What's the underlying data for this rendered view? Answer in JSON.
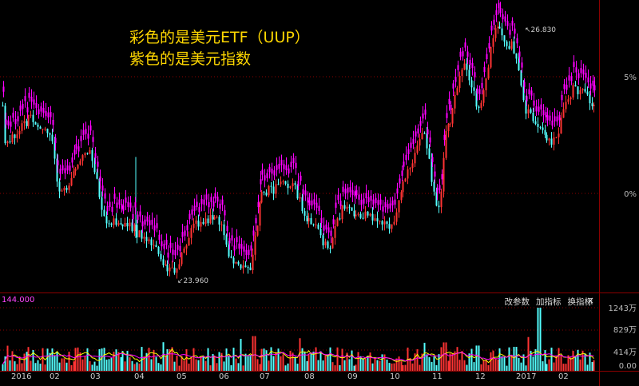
{
  "annotation": {
    "line1": "彩色的是美元ETF（UUP）",
    "line2": "紫色的是美元指数",
    "color": "#ffd700"
  },
  "price_axis": {
    "tick_labels": [
      "5%",
      "0%"
    ],
    "extremes": {
      "high_label": "26.830",
      "low_label": "23.960"
    }
  },
  "volume_panel": {
    "max_label": "144.000",
    "buttons": [
      "改参数",
      "加指标",
      "换指标"
    ],
    "close": "×",
    "tick_labels": [
      "1243万",
      "829万",
      "414万",
      "0.00"
    ]
  },
  "x_axis": {
    "labels": [
      "2016",
      "02",
      "03",
      "04",
      "05",
      "06",
      "07",
      "08",
      "09",
      "10",
      "11",
      "12",
      "2017",
      "02"
    ]
  },
  "colors": {
    "up_candle": "#ff3333",
    "down_candle": "#54ffff",
    "index_overlay": "#ff00ff",
    "ma_yellow": "#ffff00",
    "grid": "#8b0000",
    "background": "#000000"
  },
  "chart_data": {
    "type": "candlestick",
    "series": [
      {
        "name": "美元ETF（UUP）"
      },
      {
        "name": "美元指数"
      }
    ],
    "x": [
      "2016-01",
      "2016-02",
      "2016-03",
      "2016-04",
      "2016-05",
      "2016-06",
      "2016-07",
      "2016-08",
      "2016-09",
      "2016-10",
      "2016-11",
      "2016-12",
      "2017-01",
      "2017-02"
    ],
    "uup_approx_close": [
      25.6,
      25.2,
      24.7,
      24.3,
      24.6,
      24.5,
      24.9,
      24.7,
      24.6,
      25.2,
      26.0,
      26.6,
      26.2,
      26.3
    ],
    "uup_high": 26.83,
    "uup_low": 23.96,
    "pct_axis_ticks": [
      "5%",
      "0%"
    ],
    "volume_axis_ticks": [
      "1243万",
      "829万",
      "414万",
      "0.00"
    ]
  }
}
